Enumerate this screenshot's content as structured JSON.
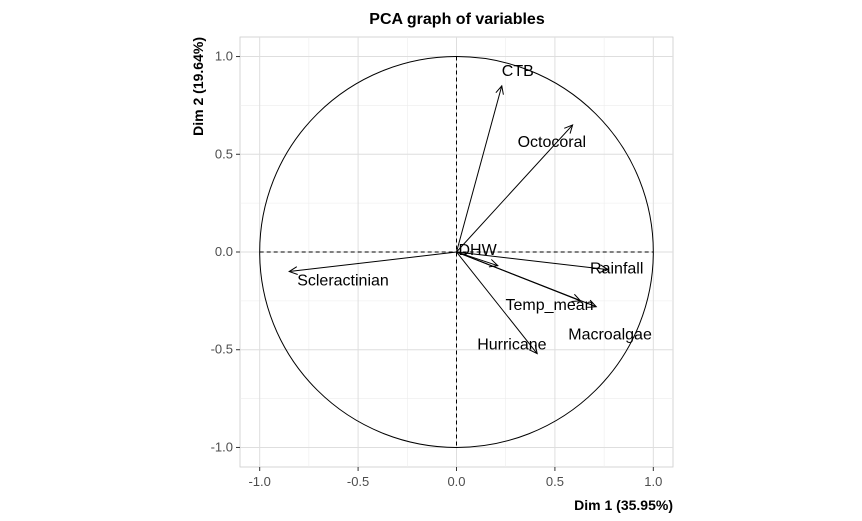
{
  "chart_data": {
    "type": "scatter",
    "title": "PCA graph of variables",
    "xlabel": "Dim 1 (35.95%)",
    "ylabel": "Dim 2 (19.64%)",
    "xlim": [
      -1.1,
      1.1
    ],
    "ylim": [
      -1.1,
      1.1
    ],
    "xticks": [
      -1.0,
      -0.5,
      0.0,
      0.5,
      1.0
    ],
    "yticks": [
      -1.0,
      -0.5,
      0.0,
      0.5,
      1.0
    ],
    "xtick_labels": [
      "-1.0",
      "-0.5",
      "0.0",
      "0.5",
      "1.0"
    ],
    "ytick_labels": [
      "-1.0",
      "-0.5",
      "0.0",
      "0.5",
      "1.0"
    ],
    "grid": true,
    "unit_circle": true,
    "variables": [
      {
        "name": "CTB",
        "x": 0.23,
        "y": 0.85
      },
      {
        "name": "Octocoral",
        "x": 0.59,
        "y": 0.65
      },
      {
        "name": "DHW",
        "x": 0.21,
        "y": -0.07
      },
      {
        "name": "Rainfall",
        "x": 0.77,
        "y": -0.09
      },
      {
        "name": "Temp_mean",
        "x": 0.63,
        "y": -0.25
      },
      {
        "name": "Macroalgae",
        "x": 0.71,
        "y": -0.28
      },
      {
        "name": "Hurricane",
        "x": 0.41,
        "y": -0.52
      },
      {
        "name": "Scleractinian",
        "x": -0.85,
        "y": -0.1
      }
    ]
  }
}
